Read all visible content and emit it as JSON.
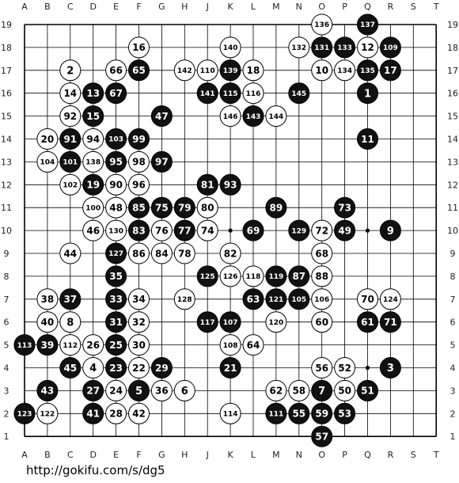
{
  "board": {
    "size": 19,
    "columns": [
      "A",
      "B",
      "C",
      "D",
      "E",
      "F",
      "G",
      "H",
      "J",
      "K",
      "L",
      "M",
      "N",
      "O",
      "P",
      "Q",
      "R",
      "S",
      "T"
    ],
    "rows": [
      19,
      18,
      17,
      16,
      15,
      14,
      13,
      12,
      11,
      10,
      9,
      8,
      7,
      6,
      5,
      4,
      3,
      2,
      1
    ],
    "colors": {
      "line": "#000000",
      "black_stone": "#111111",
      "white_stone": "#ffffff",
      "background": "#ffffff"
    },
    "hoshi": [
      "D4",
      "K4",
      "Q4",
      "D10",
      "K10",
      "Q10",
      "D16",
      "K16",
      "Q16"
    ],
    "stones": [
      {
        "p": "O19",
        "c": "w",
        "n": "136"
      },
      {
        "p": "Q19",
        "c": "b",
        "n": "137"
      },
      {
        "p": "F18",
        "c": "w",
        "n": "16"
      },
      {
        "p": "K18",
        "c": "w",
        "n": "140"
      },
      {
        "p": "N18",
        "c": "w",
        "n": "132"
      },
      {
        "p": "O18",
        "c": "b",
        "n": "131"
      },
      {
        "p": "P18",
        "c": "b",
        "n": "133"
      },
      {
        "p": "Q18",
        "c": "w",
        "n": "12"
      },
      {
        "p": "R18",
        "c": "b",
        "n": "109"
      },
      {
        "p": "C17",
        "c": "w",
        "n": "2"
      },
      {
        "p": "E17",
        "c": "w",
        "n": "66"
      },
      {
        "p": "F17",
        "c": "b",
        "n": "65"
      },
      {
        "p": "H17",
        "c": "w",
        "n": "142"
      },
      {
        "p": "J17",
        "c": "w",
        "n": "110"
      },
      {
        "p": "K17",
        "c": "b",
        "n": "139"
      },
      {
        "p": "L17",
        "c": "w",
        "n": "18"
      },
      {
        "p": "O17",
        "c": "w",
        "n": "10"
      },
      {
        "p": "P17",
        "c": "w",
        "n": "134"
      },
      {
        "p": "Q17",
        "c": "b",
        "n": "135"
      },
      {
        "p": "R17",
        "c": "b",
        "n": "17"
      },
      {
        "p": "C16",
        "c": "w",
        "n": "14"
      },
      {
        "p": "D16",
        "c": "b",
        "n": "13"
      },
      {
        "p": "E16",
        "c": "b",
        "n": "67"
      },
      {
        "p": "J16",
        "c": "b",
        "n": "141"
      },
      {
        "p": "K16",
        "c": "b",
        "n": "115"
      },
      {
        "p": "L16",
        "c": "w",
        "n": "116"
      },
      {
        "p": "N16",
        "c": "b",
        "n": "145"
      },
      {
        "p": "Q16",
        "c": "b",
        "n": "1"
      },
      {
        "p": "C15",
        "c": "w",
        "n": "92"
      },
      {
        "p": "D15",
        "c": "b",
        "n": "15"
      },
      {
        "p": "G15",
        "c": "b",
        "n": "47"
      },
      {
        "p": "K15",
        "c": "w",
        "n": "146"
      },
      {
        "p": "L15",
        "c": "b",
        "n": "143"
      },
      {
        "p": "M15",
        "c": "w",
        "n": "144"
      },
      {
        "p": "B14",
        "c": "w",
        "n": "20"
      },
      {
        "p": "C14",
        "c": "b",
        "n": "91"
      },
      {
        "p": "D14",
        "c": "w",
        "n": "94"
      },
      {
        "p": "E14",
        "c": "b",
        "n": "103"
      },
      {
        "p": "F14",
        "c": "b",
        "n": "99"
      },
      {
        "p": "Q14",
        "c": "b",
        "n": "11"
      },
      {
        "p": "B13",
        "c": "w",
        "n": "104"
      },
      {
        "p": "C13",
        "c": "b",
        "n": "101"
      },
      {
        "p": "D13",
        "c": "w",
        "n": "138"
      },
      {
        "p": "E13",
        "c": "b",
        "n": "95"
      },
      {
        "p": "F13",
        "c": "w",
        "n": "98"
      },
      {
        "p": "G13",
        "c": "b",
        "n": "97"
      },
      {
        "p": "C12",
        "c": "w",
        "n": "102"
      },
      {
        "p": "D12",
        "c": "b",
        "n": "19"
      },
      {
        "p": "E12",
        "c": "w",
        "n": "90"
      },
      {
        "p": "F12",
        "c": "w",
        "n": "96"
      },
      {
        "p": "J12",
        "c": "b",
        "n": "81"
      },
      {
        "p": "K12",
        "c": "b",
        "n": "93"
      },
      {
        "p": "D11",
        "c": "w",
        "n": "100"
      },
      {
        "p": "E11",
        "c": "w",
        "n": "48"
      },
      {
        "p": "F11",
        "c": "b",
        "n": "85"
      },
      {
        "p": "G11",
        "c": "b",
        "n": "75"
      },
      {
        "p": "H11",
        "c": "b",
        "n": "79"
      },
      {
        "p": "J11",
        "c": "w",
        "n": "80"
      },
      {
        "p": "M11",
        "c": "b",
        "n": "89"
      },
      {
        "p": "P11",
        "c": "b",
        "n": "73"
      },
      {
        "p": "D10",
        "c": "w",
        "n": "46"
      },
      {
        "p": "E10",
        "c": "w",
        "n": "130"
      },
      {
        "p": "F10",
        "c": "b",
        "n": "83"
      },
      {
        "p": "G10",
        "c": "w",
        "n": "76"
      },
      {
        "p": "H10",
        "c": "b",
        "n": "77"
      },
      {
        "p": "J10",
        "c": "w",
        "n": "74"
      },
      {
        "p": "L10",
        "c": "b",
        "n": "69"
      },
      {
        "p": "N10",
        "c": "b",
        "n": "129"
      },
      {
        "p": "O10",
        "c": "w",
        "n": "72"
      },
      {
        "p": "P10",
        "c": "b",
        "n": "49"
      },
      {
        "p": "R10",
        "c": "b",
        "n": "9"
      },
      {
        "p": "C9",
        "c": "w",
        "n": "44"
      },
      {
        "p": "E9",
        "c": "b",
        "n": "127"
      },
      {
        "p": "F9",
        "c": "w",
        "n": "86"
      },
      {
        "p": "G9",
        "c": "w",
        "n": "84"
      },
      {
        "p": "H9",
        "c": "w",
        "n": "78"
      },
      {
        "p": "K9",
        "c": "w",
        "n": "82"
      },
      {
        "p": "O9",
        "c": "w",
        "n": "68"
      },
      {
        "p": "E8",
        "c": "b",
        "n": "35"
      },
      {
        "p": "J8",
        "c": "b",
        "n": "125"
      },
      {
        "p": "K8",
        "c": "w",
        "n": "126"
      },
      {
        "p": "L8",
        "c": "w",
        "n": "118"
      },
      {
        "p": "M8",
        "c": "b",
        "n": "119"
      },
      {
        "p": "N8",
        "c": "b",
        "n": "87"
      },
      {
        "p": "O8",
        "c": "w",
        "n": "88"
      },
      {
        "p": "B7",
        "c": "w",
        "n": "38"
      },
      {
        "p": "C7",
        "c": "b",
        "n": "37"
      },
      {
        "p": "E7",
        "c": "b",
        "n": "33"
      },
      {
        "p": "F7",
        "c": "w",
        "n": "34"
      },
      {
        "p": "H7",
        "c": "w",
        "n": "128"
      },
      {
        "p": "L7",
        "c": "b",
        "n": "63"
      },
      {
        "p": "M7",
        "c": "b",
        "n": "121"
      },
      {
        "p": "N7",
        "c": "b",
        "n": "105"
      },
      {
        "p": "O7",
        "c": "w",
        "n": "106"
      },
      {
        "p": "Q7",
        "c": "w",
        "n": "70"
      },
      {
        "p": "R7",
        "c": "w",
        "n": "124"
      },
      {
        "p": "B6",
        "c": "w",
        "n": "40"
      },
      {
        "p": "C6",
        "c": "w",
        "n": "8"
      },
      {
        "p": "E6",
        "c": "b",
        "n": "31"
      },
      {
        "p": "F6",
        "c": "w",
        "n": "32"
      },
      {
        "p": "J6",
        "c": "b",
        "n": "117"
      },
      {
        "p": "K6",
        "c": "b",
        "n": "107"
      },
      {
        "p": "M6",
        "c": "w",
        "n": "120"
      },
      {
        "p": "O6",
        "c": "w",
        "n": "60"
      },
      {
        "p": "Q6",
        "c": "b",
        "n": "61"
      },
      {
        "p": "R6",
        "c": "b",
        "n": "71"
      },
      {
        "p": "A5",
        "c": "b",
        "n": "113"
      },
      {
        "p": "B5",
        "c": "b",
        "n": "39"
      },
      {
        "p": "C5",
        "c": "w",
        "n": "112"
      },
      {
        "p": "D5",
        "c": "w",
        "n": "26"
      },
      {
        "p": "E5",
        "c": "b",
        "n": "25"
      },
      {
        "p": "F5",
        "c": "w",
        "n": "30"
      },
      {
        "p": "K5",
        "c": "w",
        "n": "108"
      },
      {
        "p": "L5",
        "c": "w",
        "n": "64"
      },
      {
        "p": "C4",
        "c": "b",
        "n": "45"
      },
      {
        "p": "D4",
        "c": "w",
        "n": "4"
      },
      {
        "p": "E4",
        "c": "b",
        "n": "23"
      },
      {
        "p": "F4",
        "c": "w",
        "n": "22"
      },
      {
        "p": "G4",
        "c": "b",
        "n": "29"
      },
      {
        "p": "K4",
        "c": "b",
        "n": "21"
      },
      {
        "p": "O4",
        "c": "w",
        "n": "56"
      },
      {
        "p": "P4",
        "c": "w",
        "n": "52"
      },
      {
        "p": "R4",
        "c": "b",
        "n": "3"
      },
      {
        "p": "B3",
        "c": "b",
        "n": "43"
      },
      {
        "p": "D3",
        "c": "b",
        "n": "27"
      },
      {
        "p": "E3",
        "c": "w",
        "n": "24"
      },
      {
        "p": "F3",
        "c": "b",
        "n": "5"
      },
      {
        "p": "G3",
        "c": "w",
        "n": "36"
      },
      {
        "p": "H3",
        "c": "w",
        "n": "6"
      },
      {
        "p": "M3",
        "c": "w",
        "n": "62"
      },
      {
        "p": "N3",
        "c": "w",
        "n": "58"
      },
      {
        "p": "O3",
        "c": "b",
        "n": "7"
      },
      {
        "p": "P3",
        "c": "w",
        "n": "50"
      },
      {
        "p": "Q3",
        "c": "b",
        "n": "51"
      },
      {
        "p": "A2",
        "c": "b",
        "n": "123"
      },
      {
        "p": "B2",
        "c": "w",
        "n": "122"
      },
      {
        "p": "D2",
        "c": "b",
        "n": "41"
      },
      {
        "p": "E2",
        "c": "w",
        "n": "28"
      },
      {
        "p": "F2",
        "c": "w",
        "n": "42"
      },
      {
        "p": "K2",
        "c": "w",
        "n": "114"
      },
      {
        "p": "M2",
        "c": "b",
        "n": "111"
      },
      {
        "p": "N2",
        "c": "b",
        "n": "55"
      },
      {
        "p": "O2",
        "c": "b",
        "n": "59"
      },
      {
        "p": "P2",
        "c": "b",
        "n": "53"
      },
      {
        "p": "O1",
        "c": "b",
        "n": "57"
      }
    ]
  },
  "source_url": "http://gokifu.com/s/dg5"
}
